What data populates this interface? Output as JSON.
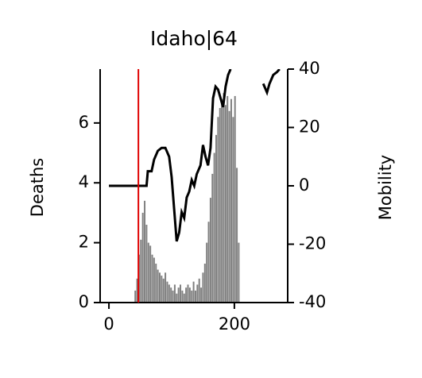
{
  "chart_data": {
    "type": "bar_line",
    "title": "Idaho|64",
    "ylabel": "Deaths",
    "y2label": "Mobility",
    "xlim": [
      -14,
      285
    ],
    "xticks": [
      0,
      200
    ],
    "ylim": [
      0,
      7.8
    ],
    "yticks": [
      0,
      2,
      4,
      6
    ],
    "y2lim": [
      -40,
      40
    ],
    "y2ticks": [
      -40,
      -20,
      0,
      20,
      40
    ],
    "vline": 47,
    "vline_color": "#e00000",
    "bars": {
      "name": "Deaths",
      "color": "#808080",
      "x": [
        42,
        45,
        48,
        51,
        54,
        57,
        60,
        63,
        66,
        69,
        72,
        75,
        78,
        81,
        84,
        87,
        90,
        93,
        96,
        99,
        102,
        105,
        108,
        111,
        114,
        117,
        120,
        123,
        126,
        129,
        132,
        135,
        138,
        141,
        144,
        147,
        150,
        153,
        156,
        159,
        162,
        165,
        168,
        171,
        174,
        177,
        180,
        183,
        186,
        189,
        192,
        195,
        198,
        201,
        204,
        207
      ],
      "values": [
        0.4,
        0.8,
        1.6,
        2.1,
        3.0,
        3.4,
        2.6,
        2.0,
        1.9,
        1.6,
        1.5,
        1.3,
        1.1,
        1.0,
        0.9,
        0.8,
        1.0,
        0.7,
        0.6,
        0.5,
        0.4,
        0.6,
        0.3,
        0.5,
        0.6,
        0.4,
        0.3,
        0.5,
        0.6,
        0.5,
        0.4,
        0.7,
        0.4,
        0.6,
        0.8,
        0.5,
        1.0,
        1.3,
        2.0,
        2.7,
        3.5,
        4.3,
        5.0,
        5.6,
        6.2,
        6.5,
        6.8,
        7.0,
        6.6,
        6.9,
        6.4,
        6.8,
        6.2,
        6.9,
        4.5,
        2.0
      ]
    },
    "line": {
      "name": "Mobility",
      "color": "#000000",
      "axis": "y2",
      "x": [
        0,
        20,
        40,
        60,
        62,
        68,
        72,
        78,
        84,
        90,
        96,
        100,
        104,
        108,
        112,
        116,
        120,
        124,
        128,
        132,
        136,
        140,
        146,
        150,
        154,
        158,
        162,
        166,
        170,
        174,
        178,
        182,
        186,
        190,
        194,
        240,
        246,
        252,
        256,
        262,
        268,
        272
      ],
      "values": [
        0,
        0,
        0,
        0,
        5,
        5,
        9,
        12,
        13,
        13,
        10,
        3,
        -8,
        -19,
        -16,
        -9,
        -11,
        -4,
        -2,
        2,
        0,
        4,
        7,
        14,
        10,
        7,
        13,
        30,
        34,
        33,
        30,
        27,
        34,
        38,
        40,
        null,
        35,
        32,
        35,
        38,
        39,
        40
      ]
    }
  }
}
